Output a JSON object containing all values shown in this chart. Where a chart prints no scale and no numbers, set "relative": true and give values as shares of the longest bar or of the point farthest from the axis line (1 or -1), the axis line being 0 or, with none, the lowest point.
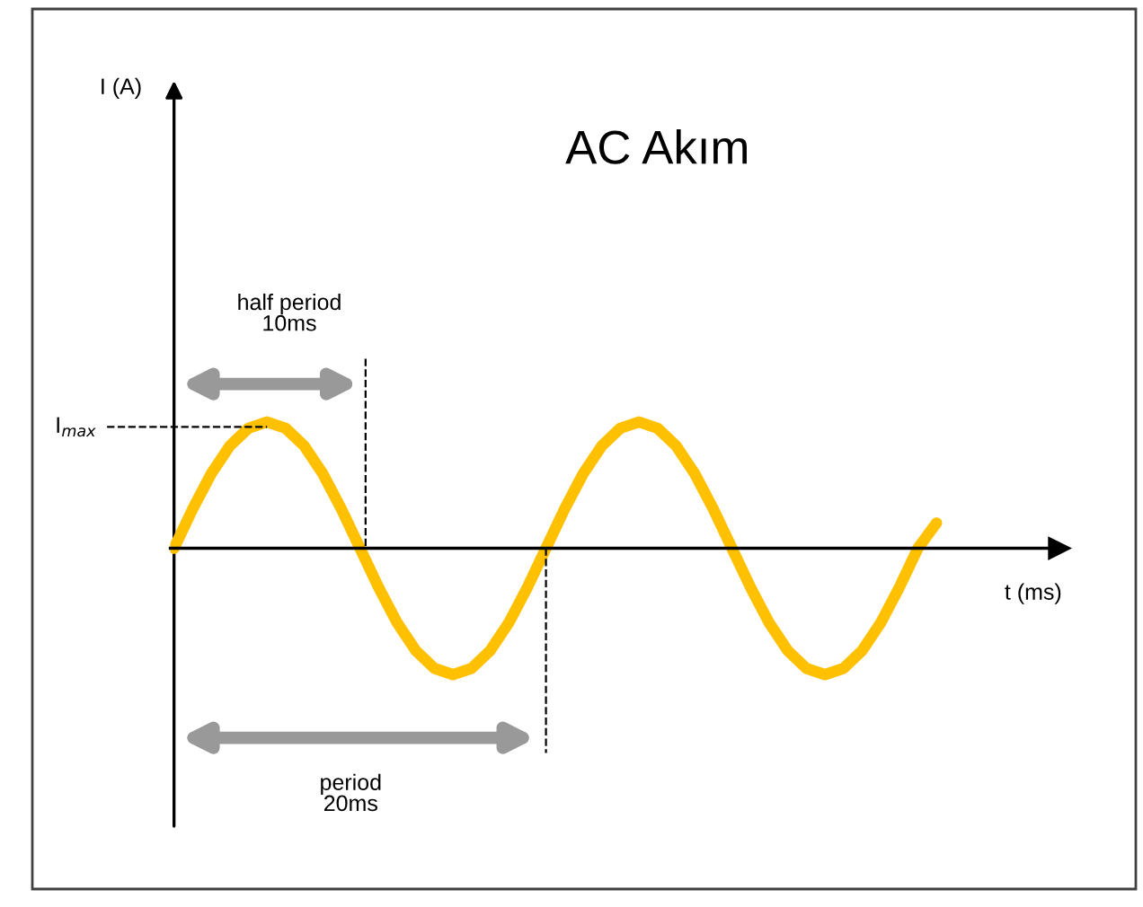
{
  "chart_data": {
    "type": "line",
    "title": "AC Akım",
    "xlabel": "t (ms)",
    "relative": true,
    "categories": [
      null,
      null,
      null,
      null,
      null,
      null,
      null,
      null,
      null,
      null,
      null,
      null,
      null,
      null,
      null,
      null,
      null,
      null,
      null,
      null,
      null,
      null,
      null,
      null,
      null,
      null,
      null,
      null,
      null,
      null,
      null,
      null,
      null,
      null,
      null,
      null,
      null,
      null,
      null,
      null,
      null,
      null
    ],
    "series": [
      {
        "color": "#ffc000",
        "values": [
          0,
          0.31,
          0.59,
          0.81,
          0.95,
          1,
          0.95,
          0.81,
          0.59,
          0.31,
          0,
          -0.31,
          -0.59,
          -0.81,
          -0.95,
          -1,
          -0.95,
          -0.81,
          -0.59,
          -0.31,
          0,
          0.31,
          0.59,
          0.81,
          0.95,
          1,
          0.95,
          0.81,
          0.59,
          0.31,
          0,
          -0.31,
          -0.59,
          -0.81,
          -0.95,
          -1,
          -0.95,
          -0.81,
          -0.59,
          -0.31,
          0,
          0.2
        ]
      }
    ],
    "annotations": [
      "half period\n10ms",
      "period\n20ms",
      "I$_{max}$",
      "I (A)"
    ],
    "marker": "none",
    "line_style": "solid"
  }
}
